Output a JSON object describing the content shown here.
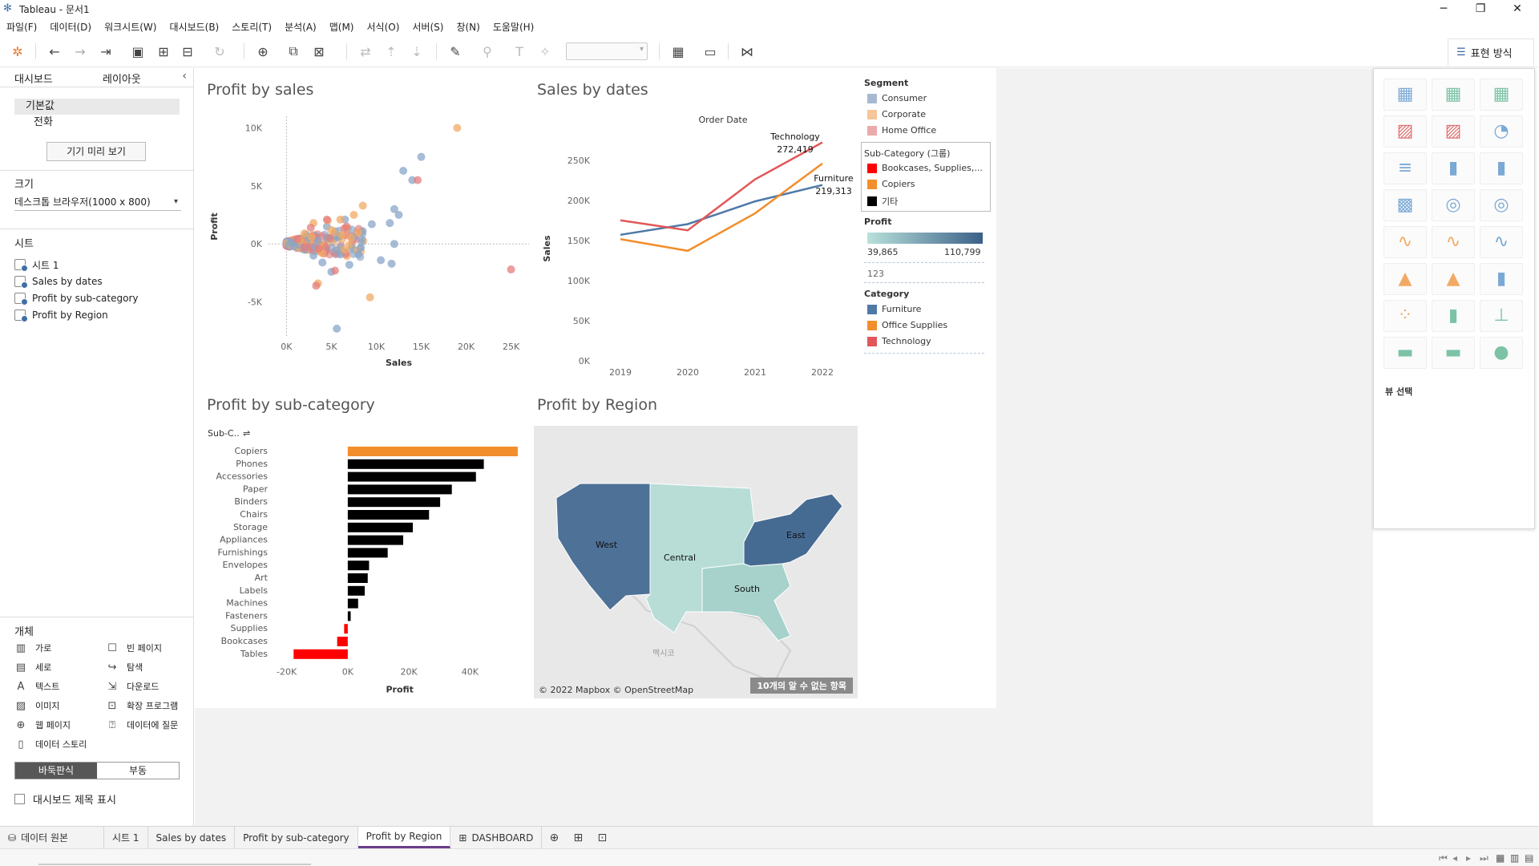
{
  "window": {
    "title": "Tableau - 문서1",
    "controls": {
      "minimize": "─",
      "restore": "❐",
      "close": "✕"
    }
  },
  "menu": [
    "파일(F)",
    "데이터(D)",
    "워크시트(W)",
    "대시보드(B)",
    "스토리(T)",
    "분석(A)",
    "맵(M)",
    "서식(O)",
    "서버(S)",
    "창(N)",
    "도움말(H)"
  ],
  "toolbar": {
    "show_me_label": "표현 방식"
  },
  "left_pane": {
    "tab_dashboard": "대시보드",
    "tab_layout": "레이아웃",
    "collapse": "‹",
    "device_default": "기본값",
    "device_phone": "전화",
    "preview_button": "기기 미리 보기",
    "size_title": "크기",
    "size_value": "데스크톱 브라우저(1000 x 800)",
    "sheets_title": "시트",
    "sheets": [
      "시트 1",
      "Sales by dates",
      "Profit by sub-category",
      "Profit by Region"
    ],
    "objects_title": "개체",
    "objects": [
      {
        "label": "가로",
        "icon": "▥",
        "name": "horizontal"
      },
      {
        "label": "빈 페이지",
        "icon": "☐",
        "name": "blank"
      },
      {
        "label": "세로",
        "icon": "▤",
        "name": "vertical"
      },
      {
        "label": "탐색",
        "icon": "↪",
        "name": "navigation"
      },
      {
        "label": "텍스트",
        "icon": "A",
        "name": "text"
      },
      {
        "label": "다운로드",
        "icon": "⇲",
        "name": "download"
      },
      {
        "label": "이미지",
        "icon": "▨",
        "name": "image"
      },
      {
        "label": "확장 프로그램",
        "icon": "⊡",
        "name": "extension"
      },
      {
        "label": "웹 페이지",
        "icon": "⊕",
        "name": "web-page"
      },
      {
        "label": "데이터에 질문",
        "icon": "⍰",
        "name": "ask-data"
      },
      {
        "label": "데이터 스토리",
        "icon": "▯",
        "name": "data-story"
      }
    ],
    "tiled": "바둑판식",
    "floating": "부동",
    "show_title": "대시보드 제목 표시"
  },
  "colors": {
    "consumer": "#a7b9d2",
    "corporate": "#f7c59a",
    "home_office": "#ebaaaa",
    "bookcases": "#ff0000",
    "copiers": "#f28e2b",
    "other": "#000000",
    "furniture": "#4e79a7",
    "office_supplies": "#f28e2b",
    "technology": "#e15759",
    "profit_low": "#b9e1db",
    "profit_high": "#3b6088"
  },
  "dashboard": {
    "profit_by_sales_title": "Profit by sales",
    "sales_by_dates_title": "Sales by dates",
    "profit_by_subcat_title": "Profit by sub-category",
    "profit_by_region_title": "Profit by Region",
    "legends": {
      "segment_title": "Segment",
      "segment_items": [
        "Consumer",
        "Corporate",
        "Home Office"
      ],
      "subcat_title": "Sub-Category (그룹)",
      "subcat_items": [
        "Bookcases, Supplies,...",
        "Copiers",
        "기타"
      ],
      "profit_title": "Profit",
      "profit_min": "39,865",
      "profit_max": "110,799",
      "profit_null": "123",
      "category_title": "Category",
      "category_items": [
        "Furniture",
        "Office Supplies",
        "Technology"
      ]
    },
    "map": {
      "credit": "© 2022 Mapbox © OpenStreetMap",
      "unknown_badge": "10개의 알 수 없는 항목",
      "mexico_label": "멕시코",
      "regions": [
        "West",
        "Central",
        "South",
        "East"
      ]
    }
  },
  "chart_data": [
    {
      "type": "scatter",
      "title": "Profit by sales",
      "xlabel": "Sales",
      "ylabel": "Profit",
      "xlim": [
        -2000,
        27000
      ],
      "ylim": [
        -8000,
        11000
      ],
      "xticks": [
        "0K",
        "5K",
        "10K",
        "15K",
        "20K",
        "25K"
      ],
      "yticks": [
        "10K",
        "5K",
        "0K",
        "-5K"
      ],
      "points_note": "Dense cluster of points near origin colored by Segment",
      "series": [
        {
          "name": "Consumer",
          "points": [
            [
              15000,
              7500
            ],
            [
              13000,
              6300
            ],
            [
              14000,
              5500
            ],
            [
              12000,
              3000
            ],
            [
              11500,
              1800
            ],
            [
              12500,
              2500
            ],
            [
              9500,
              1700
            ],
            [
              10500,
              -1400
            ],
            [
              6000,
              -900
            ],
            [
              11700,
              -1700
            ],
            [
              5600,
              -7300
            ],
            [
              12000,
              0
            ],
            [
              4000,
              -1600
            ],
            [
              5000,
              -2400
            ],
            [
              7000,
              -1800
            ],
            [
              8000,
              -900
            ],
            [
              3000,
              -1000
            ],
            [
              2000,
              -500
            ],
            [
              4500,
              1500
            ],
            [
              6500,
              2100
            ],
            [
              2200,
              800
            ],
            [
              1000,
              200
            ],
            [
              1500,
              -100
            ],
            [
              3500,
              300
            ],
            [
              2500,
              500
            ],
            [
              500,
              100
            ],
            [
              800,
              -200
            ]
          ]
        },
        {
          "name": "Corporate",
          "points": [
            [
              19000,
              10000
            ],
            [
              9300,
              -4600
            ],
            [
              8500,
              3300
            ],
            [
              4600,
              2000
            ],
            [
              6000,
              2100
            ],
            [
              3500,
              -3400
            ],
            [
              7500,
              2500
            ],
            [
              8000,
              1000
            ],
            [
              5000,
              1200
            ],
            [
              3000,
              1800
            ],
            [
              2000,
              900
            ],
            [
              4000,
              -800
            ],
            [
              6500,
              -500
            ],
            [
              1500,
              300
            ],
            [
              2800,
              600
            ]
          ]
        },
        {
          "name": "Home Office",
          "points": [
            [
              25000,
              -2200
            ],
            [
              14600,
              5500
            ],
            [
              3300,
              -3600
            ],
            [
              4500,
              2100
            ],
            [
              6700,
              1500
            ],
            [
              2700,
              1400
            ],
            [
              5400,
              -2300
            ],
            [
              3600,
              -400
            ],
            [
              1200,
              400
            ],
            [
              2000,
              -300
            ]
          ]
        }
      ]
    },
    {
      "type": "line",
      "title": "Sales by dates",
      "xlabel": "Order Date",
      "ylabel": "Sales",
      "categories": [
        "2019",
        "2020",
        "2021",
        "2022"
      ],
      "ylim": [
        0,
        280000
      ],
      "yticks": [
        "0K",
        "50K",
        "100K",
        "150K",
        "200K",
        "250K"
      ],
      "series": [
        {
          "name": "Furniture",
          "values": [
            157193,
            170518,
            198901,
            219313
          ]
        },
        {
          "name": "Office Supplies",
          "values": [
            151776,
            137233,
            183940,
            246097
          ]
        },
        {
          "name": "Technology",
          "values": [
            175278,
            162781,
            226364,
            272419
          ]
        }
      ],
      "annotations": [
        {
          "series": "Technology",
          "label": "Technology",
          "value": "272,419"
        },
        {
          "series": "Furniture",
          "label": "Furniture",
          "value": "219,313"
        }
      ]
    },
    {
      "type": "bar",
      "title": "Profit by sub-category",
      "xlabel": "Profit",
      "ylabel": "Sub-C..",
      "xlim": [
        -22000,
        58000
      ],
      "xticks": [
        "-20K",
        "0K",
        "20K",
        "40K"
      ],
      "categories": [
        "Copiers",
        "Phones",
        "Accessories",
        "Paper",
        "Binders",
        "Chairs",
        "Storage",
        "Appliances",
        "Furnishings",
        "Envelopes",
        "Art",
        "Labels",
        "Machines",
        "Fasteners",
        "Supplies",
        "Bookcases",
        "Tables"
      ],
      "values": [
        55618,
        44516,
        41937,
        34054,
        30222,
        26590,
        21279,
        18138,
        13059,
        6964,
        6528,
        5546,
        3385,
        950,
        -1189,
        -3473,
        -17725
      ],
      "groups": [
        "Copiers",
        "other",
        "other",
        "other",
        "other",
        "other",
        "other",
        "other",
        "other",
        "other",
        "other",
        "other",
        "other",
        "other",
        "bookcases",
        "bookcases",
        "bookcases"
      ]
    }
  ],
  "bottom_tabs": {
    "data_source": "데이터 원본",
    "sheets": [
      "시트 1",
      "Sales by dates",
      "Profit by sub-category",
      "Profit by Region"
    ],
    "active": "Profit by Region",
    "dashboard": "DASHBOARD"
  }
}
